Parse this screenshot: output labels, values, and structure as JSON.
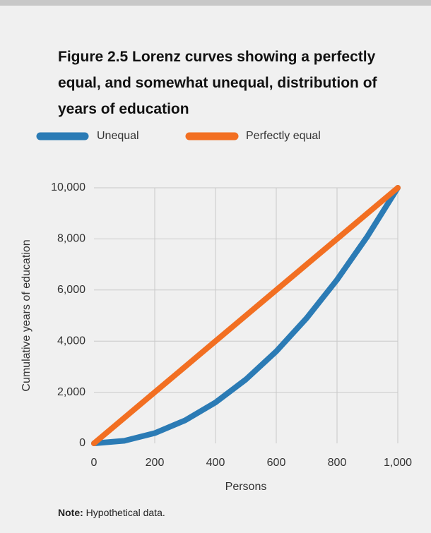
{
  "chart_data": {
    "type": "line",
    "title": "Figure 2.5 Lorenz curves showing a perfectly equal, and somewhat unequal, distribution of years of education",
    "x": [
      0,
      100,
      200,
      300,
      400,
      500,
      600,
      700,
      800,
      900,
      1000
    ],
    "series": [
      {
        "name": "Unequal",
        "color": "#2b7bb5",
        "values": [
          0,
          100,
          400,
          900,
          1600,
          2500,
          3600,
          4900,
          6400,
          8100,
          10000
        ]
      },
      {
        "name": "Perfectly equal",
        "color": "#f26f22",
        "values": [
          0,
          1000,
          2000,
          3000,
          4000,
          5000,
          6000,
          7000,
          8000,
          9000,
          10000
        ]
      }
    ],
    "xlabel": "Persons",
    "ylabel": "Cumulative years of education",
    "xlim": [
      0,
      1000
    ],
    "xticks": [
      0,
      200,
      400,
      600,
      800,
      {
        "value": 1000,
        "label": "1,000"
      }
    ],
    "ylim": [
      0,
      10000
    ],
    "yticks": [
      0,
      {
        "value": 2000,
        "label": "2,000"
      },
      {
        "value": 4000,
        "label": "4,000"
      },
      {
        "value": 6000,
        "label": "6,000"
      },
      {
        "value": 8000,
        "label": "8,000"
      },
      {
        "value": 10000,
        "label": "10,000"
      }
    ],
    "grid": true,
    "legend": "top",
    "note": {
      "label": "Note:",
      "text": "Hypothetical data."
    }
  }
}
